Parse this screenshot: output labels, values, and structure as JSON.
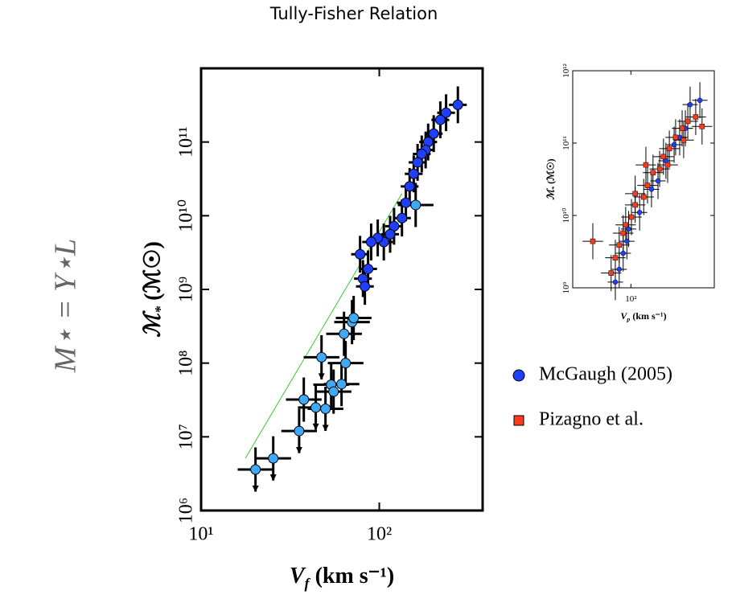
{
  "formula": "M⋆ = Υ⋆L",
  "chart_data": [
    {
      "type": "scatter",
      "title": "Tully-Fisher Relation",
      "x_label": {
        "main": "V",
        "sub": "f",
        "rest": " (km s⁻¹)"
      },
      "y_label": {
        "main": "ℳ",
        "sub": "*",
        "rest": " (ℳ☉)"
      },
      "x_scale": "log",
      "y_scale": "log",
      "xlim": [
        10,
        380
      ],
      "ylim": [
        1000000,
        1000000000000
      ],
      "xticks": [
        {
          "value": 10,
          "label": "10¹"
        },
        {
          "value": 100,
          "label": "10²"
        }
      ],
      "yticks": [
        {
          "value": 1000000,
          "label": "10⁶"
        },
        {
          "value": 10000000,
          "label": "10⁷"
        },
        {
          "value": 100000000,
          "label": "10⁸"
        },
        {
          "value": 1000000000,
          "label": "10⁹"
        },
        {
          "value": 10000000000,
          "label": "10¹⁰"
        },
        {
          "value": 100000000000,
          "label": "10¹¹"
        }
      ],
      "fit_line": {
        "color": "#33cc33",
        "x": [
          17.7,
          134
        ],
        "y": [
          5100000,
          20000000000
        ]
      },
      "series": [
        {
          "name": "McGaugh (2005)",
          "color": "#1f3fff",
          "marker": "circle",
          "yerr_dex": 0.25,
          "xerr_dex": 0.05,
          "x": [
            276,
            237,
            220,
            202,
            188,
            182,
            173,
            164,
            156,
            148,
            141,
            134,
            121,
            115,
            106,
            98,
            90,
            78,
            86.5,
            81,
            83
          ],
          "values": [
            320000000000,
            250000000000,
            200000000000,
            130000000000,
            100000000000,
            78000000000,
            69000000000,
            53000000000,
            37000000000,
            25000000000,
            15000000000,
            9300000000,
            7200000000,
            5600000000,
            4400000000,
            5000000000,
            4400000000,
            3000000000,
            1900000000,
            1400000000,
            1100000000
          ]
        },
        {
          "color": "#3fa9f5",
          "marker": "circle",
          "yerr_dex": 0.3,
          "xerr_dex": 0.1,
          "x": [
            20.2,
            25.4,
            35.5,
            37.7,
            44,
            49.9,
            47.4,
            53.7,
            55.4,
            61.4,
            63.4,
            64.7,
            70.3,
            71.8,
            160
          ],
          "values": [
            3600000,
            5100000,
            12000000,
            32000000,
            25000000,
            24000000,
            120000000,
            51000000,
            41000000,
            52000000,
            250000000,
            100000000,
            360000000,
            410000000,
            14000000000
          ],
          "upper_limit": [
            true,
            true,
            true,
            false,
            true,
            true,
            true,
            false,
            false,
            false,
            false,
            false,
            false,
            false,
            false
          ]
        }
      ]
    },
    {
      "type": "scatter",
      "x_label": {
        "main": "V",
        "sub": "p",
        "rest": " (km s⁻¹)"
      },
      "y_label": {
        "main": "ℳ",
        "sub": "*",
        "rest": " (ℳ☉)"
      },
      "x_scale": "log",
      "y_scale": "log",
      "xlim": [
        35,
        450
      ],
      "ylim": [
        1000000000,
        1000000000000
      ],
      "xticks": [
        {
          "value": 100,
          "label": "10²"
        }
      ],
      "yticks": [
        {
          "value": 1000000000,
          "label": "10⁹"
        },
        {
          "value": 10000000000,
          "label": "10¹⁰"
        },
        {
          "value": 100000000000,
          "label": "10¹¹"
        },
        {
          "value": 1000000000000,
          "label": "10¹²"
        }
      ],
      "series": [
        {
          "name": "McGaugh (2005)",
          "color": "#1f3fff",
          "marker": "circle",
          "yerr_dex": 0.25,
          "xerr_dex": 0.06,
          "x": [
            75.5,
            81,
            93,
            96,
            117,
            145,
            163,
            188,
            218,
            241,
            291,
            347,
            267,
            87
          ],
          "values": [
            1200000000,
            1800000000,
            4400000000,
            6500000000,
            11000000000,
            23000000000,
            30000000000,
            57000000000,
            95000000000,
            120000000000,
            340000000000,
            390000000000,
            160000000000,
            3000000000
          ]
        },
        {
          "name": "Pizagno et al.",
          "color": "#ff3b1f",
          "marker": "square",
          "yerr_dex": 0.25,
          "xerr_dex": 0.08,
          "x": [
            50.3,
            75.5,
            81,
            91,
            101,
            108,
            126,
            135,
            149,
            168,
            180,
            200,
            224,
            252,
            279,
            322,
            361,
            70,
            87,
            131,
            108,
            194,
            259
          ],
          "values": [
            4400000000,
            2600000000,
            3900000000,
            7400000000,
            9500000000,
            14000000000,
            18000000000,
            26000000000,
            39000000000,
            44000000000,
            65000000000,
            84000000000,
            120000000000,
            160000000000,
            200000000000,
            230000000000,
            170000000000,
            1600000000,
            5700000000,
            50000000000,
            20000000000,
            50000000000,
            110000000000
          ]
        }
      ]
    }
  ]
}
